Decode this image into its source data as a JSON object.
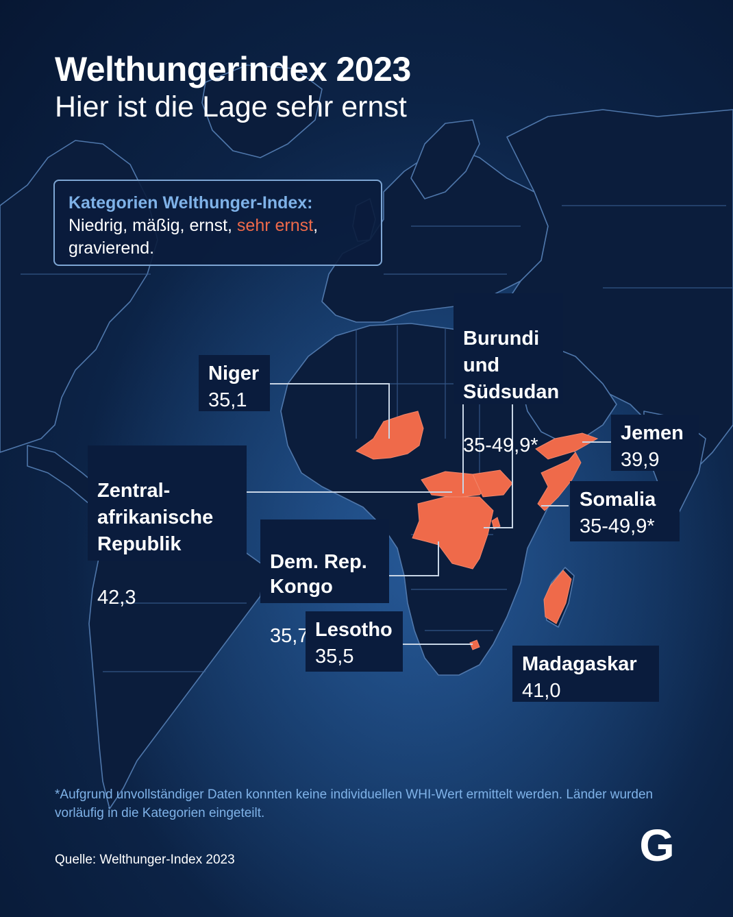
{
  "title": "Welthungerindex 2023",
  "subtitle": "Hier ist die Lage sehr ernst",
  "legend": {
    "heading": "Kategorien Welthunger-Index:",
    "line_before": "Niedrig, mäßig, ernst, ",
    "highlight": "sehr ernst",
    "line_after": ",",
    "line2": "gravierend."
  },
  "countries": [
    {
      "name": "Niger",
      "value": "35,1"
    },
    {
      "name": "Burundi\nund\nSüdsudan",
      "value": "35-49,9*"
    },
    {
      "name": "Jemen",
      "value": "39,9"
    },
    {
      "name": "Zentral-\nafrikanische\nRepublik",
      "value": "42,3"
    },
    {
      "name": "Somalia",
      "value": "35-49,9*"
    },
    {
      "name": "Dem. Rep.\nKongo",
      "value": "35,7"
    },
    {
      "name": "Lesotho",
      "value": "35,5"
    },
    {
      "name": "Madagaskar",
      "value": "41,0"
    }
  ],
  "footnote": "*Aufgrund unvollständiger Daten konnten keine individuellen WHI-Wert ermittelt werden. Länder wurden vorläufig in die Kategorien eingeteilt.",
  "source": "Quelle: Welthunger-Index 2023",
  "colors": {
    "highlight": "#ef6a4a",
    "land": "#0b1d3c",
    "border": "#4f77ab",
    "accent_text": "#7fb2e8"
  },
  "logo_letter": "G"
}
